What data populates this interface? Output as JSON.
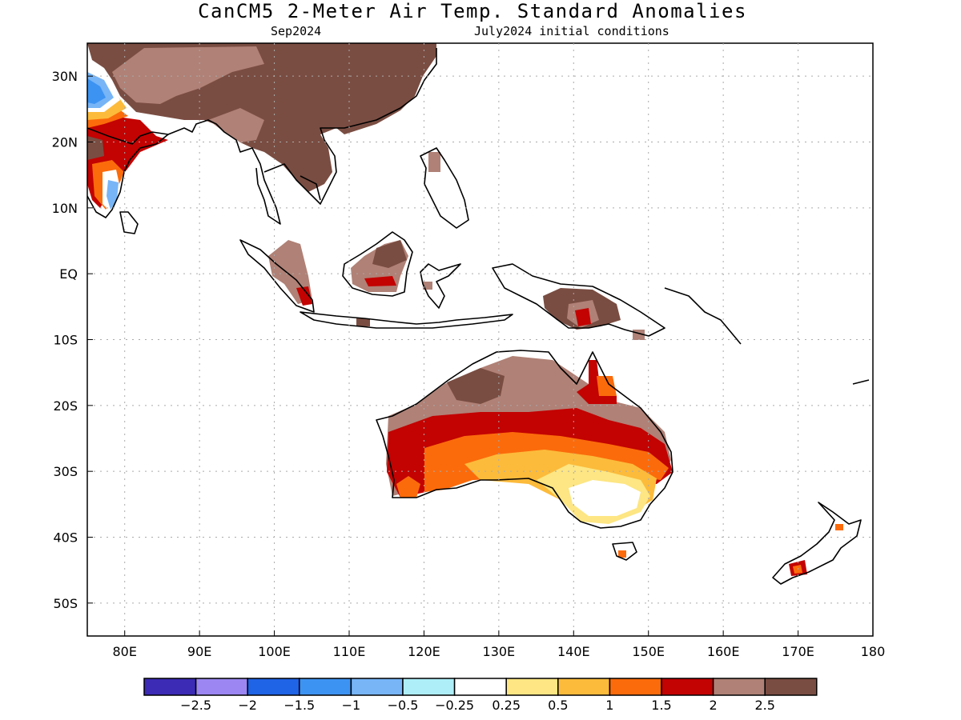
{
  "title": "CanCM5 2-Meter Air Temp. Standard Anomalies",
  "subtitle_left": "Sep2024",
  "subtitle_right": "July2024 initial conditions",
  "map": {
    "lon_range": [
      75,
      180
    ],
    "lat_range": [
      -55,
      35
    ],
    "lon_ticks": [
      "80E",
      "90E",
      "100E",
      "110E",
      "120E",
      "130E",
      "140E",
      "150E",
      "160E",
      "170E",
      "180"
    ],
    "lat_ticks": [
      "30N",
      "20N",
      "10N",
      "EQ",
      "10S",
      "20S",
      "30S",
      "40S",
      "50S"
    ],
    "grid": "dotted"
  },
  "colorbar": {
    "colors": [
      "#3b2bb5",
      "#9b86f2",
      "#1f63e6",
      "#3d93f2",
      "#77b5f7",
      "#aeeef8",
      "#ffffff",
      "#fde683",
      "#fcbb3b",
      "#fb6b0b",
      "#c30202",
      "#b08176",
      "#7a4d42"
    ],
    "labels": [
      "−2.5",
      "−2",
      "−1.5",
      "−1",
      "−0.5",
      "−0.25",
      "0.25",
      "0.5",
      "1",
      "1.5",
      "2",
      "2.5"
    ]
  }
}
